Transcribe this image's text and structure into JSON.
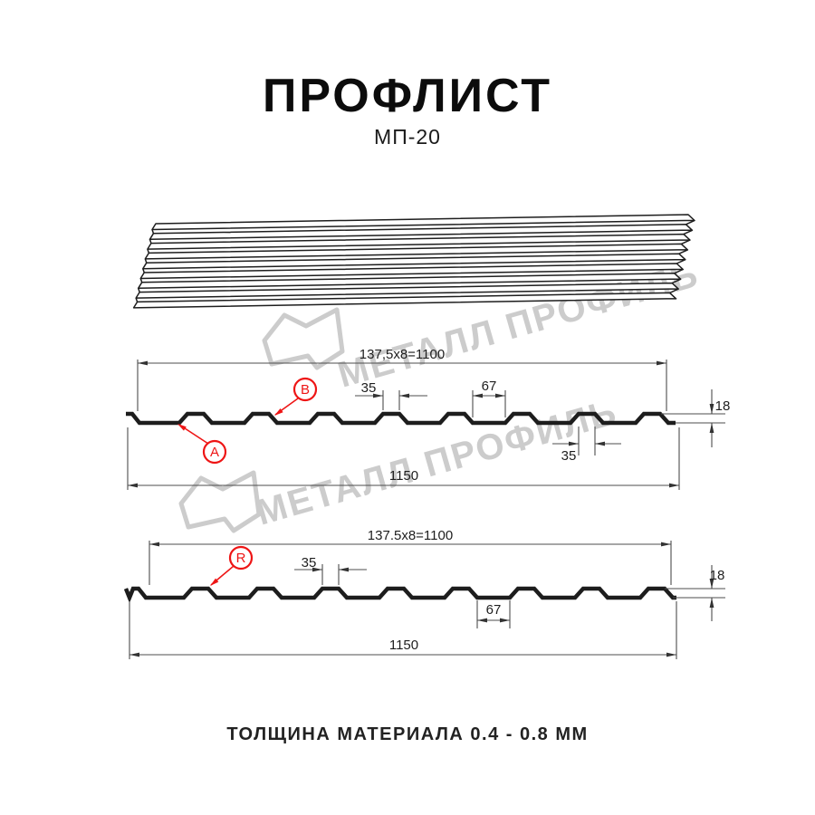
{
  "page": {
    "title": "ПРОФЛИСТ",
    "subtitle": "МП-20",
    "footer": "ТОЛЩИНА МАТЕРИАЛА 0.4 - 0.8 ММ"
  },
  "watermark": {
    "text": "МЕТАЛЛ ПРОФИЛЬ"
  },
  "drawing1": {
    "length_formula": "137,5x8=1100",
    "total_width": "1150",
    "rib_top_width": "35",
    "valley_width": "67",
    "rib_bottom_width": "35",
    "height": "18",
    "label_a": "A",
    "label_b": "B"
  },
  "drawing2": {
    "length_formula": "137.5x8=1100",
    "total_width": "1150",
    "rib_top_width": "35",
    "valley_width": "67",
    "height": "18",
    "label_r": "R"
  },
  "colors": {
    "red": "#ee1515",
    "line": "#1d1d1d",
    "dim": "#4d4d4d",
    "watermark": "#cccccc"
  }
}
